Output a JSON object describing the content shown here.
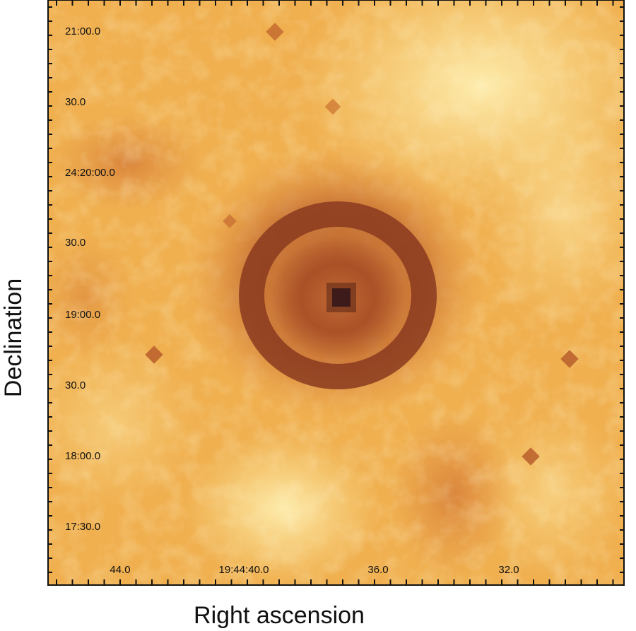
{
  "figure": {
    "xlabel": "Right ascension",
    "ylabel": "Declination",
    "x_ticks": [
      "44.0",
      "19:44:40.0",
      "36.0",
      "32.0"
    ],
    "y_ticks": [
      "21:00.0",
      "30.0",
      "24:20:00.0",
      "30.0",
      "19:00.0",
      "30.0",
      "18:00.0",
      "17:30.0"
    ],
    "colors": {
      "background": "#f0b050",
      "bright": "#fbe69a",
      "nebula": "#8a3a1e",
      "nebula_edge": "#c8702e",
      "core": "#1c1020",
      "axis": "#111111"
    }
  }
}
